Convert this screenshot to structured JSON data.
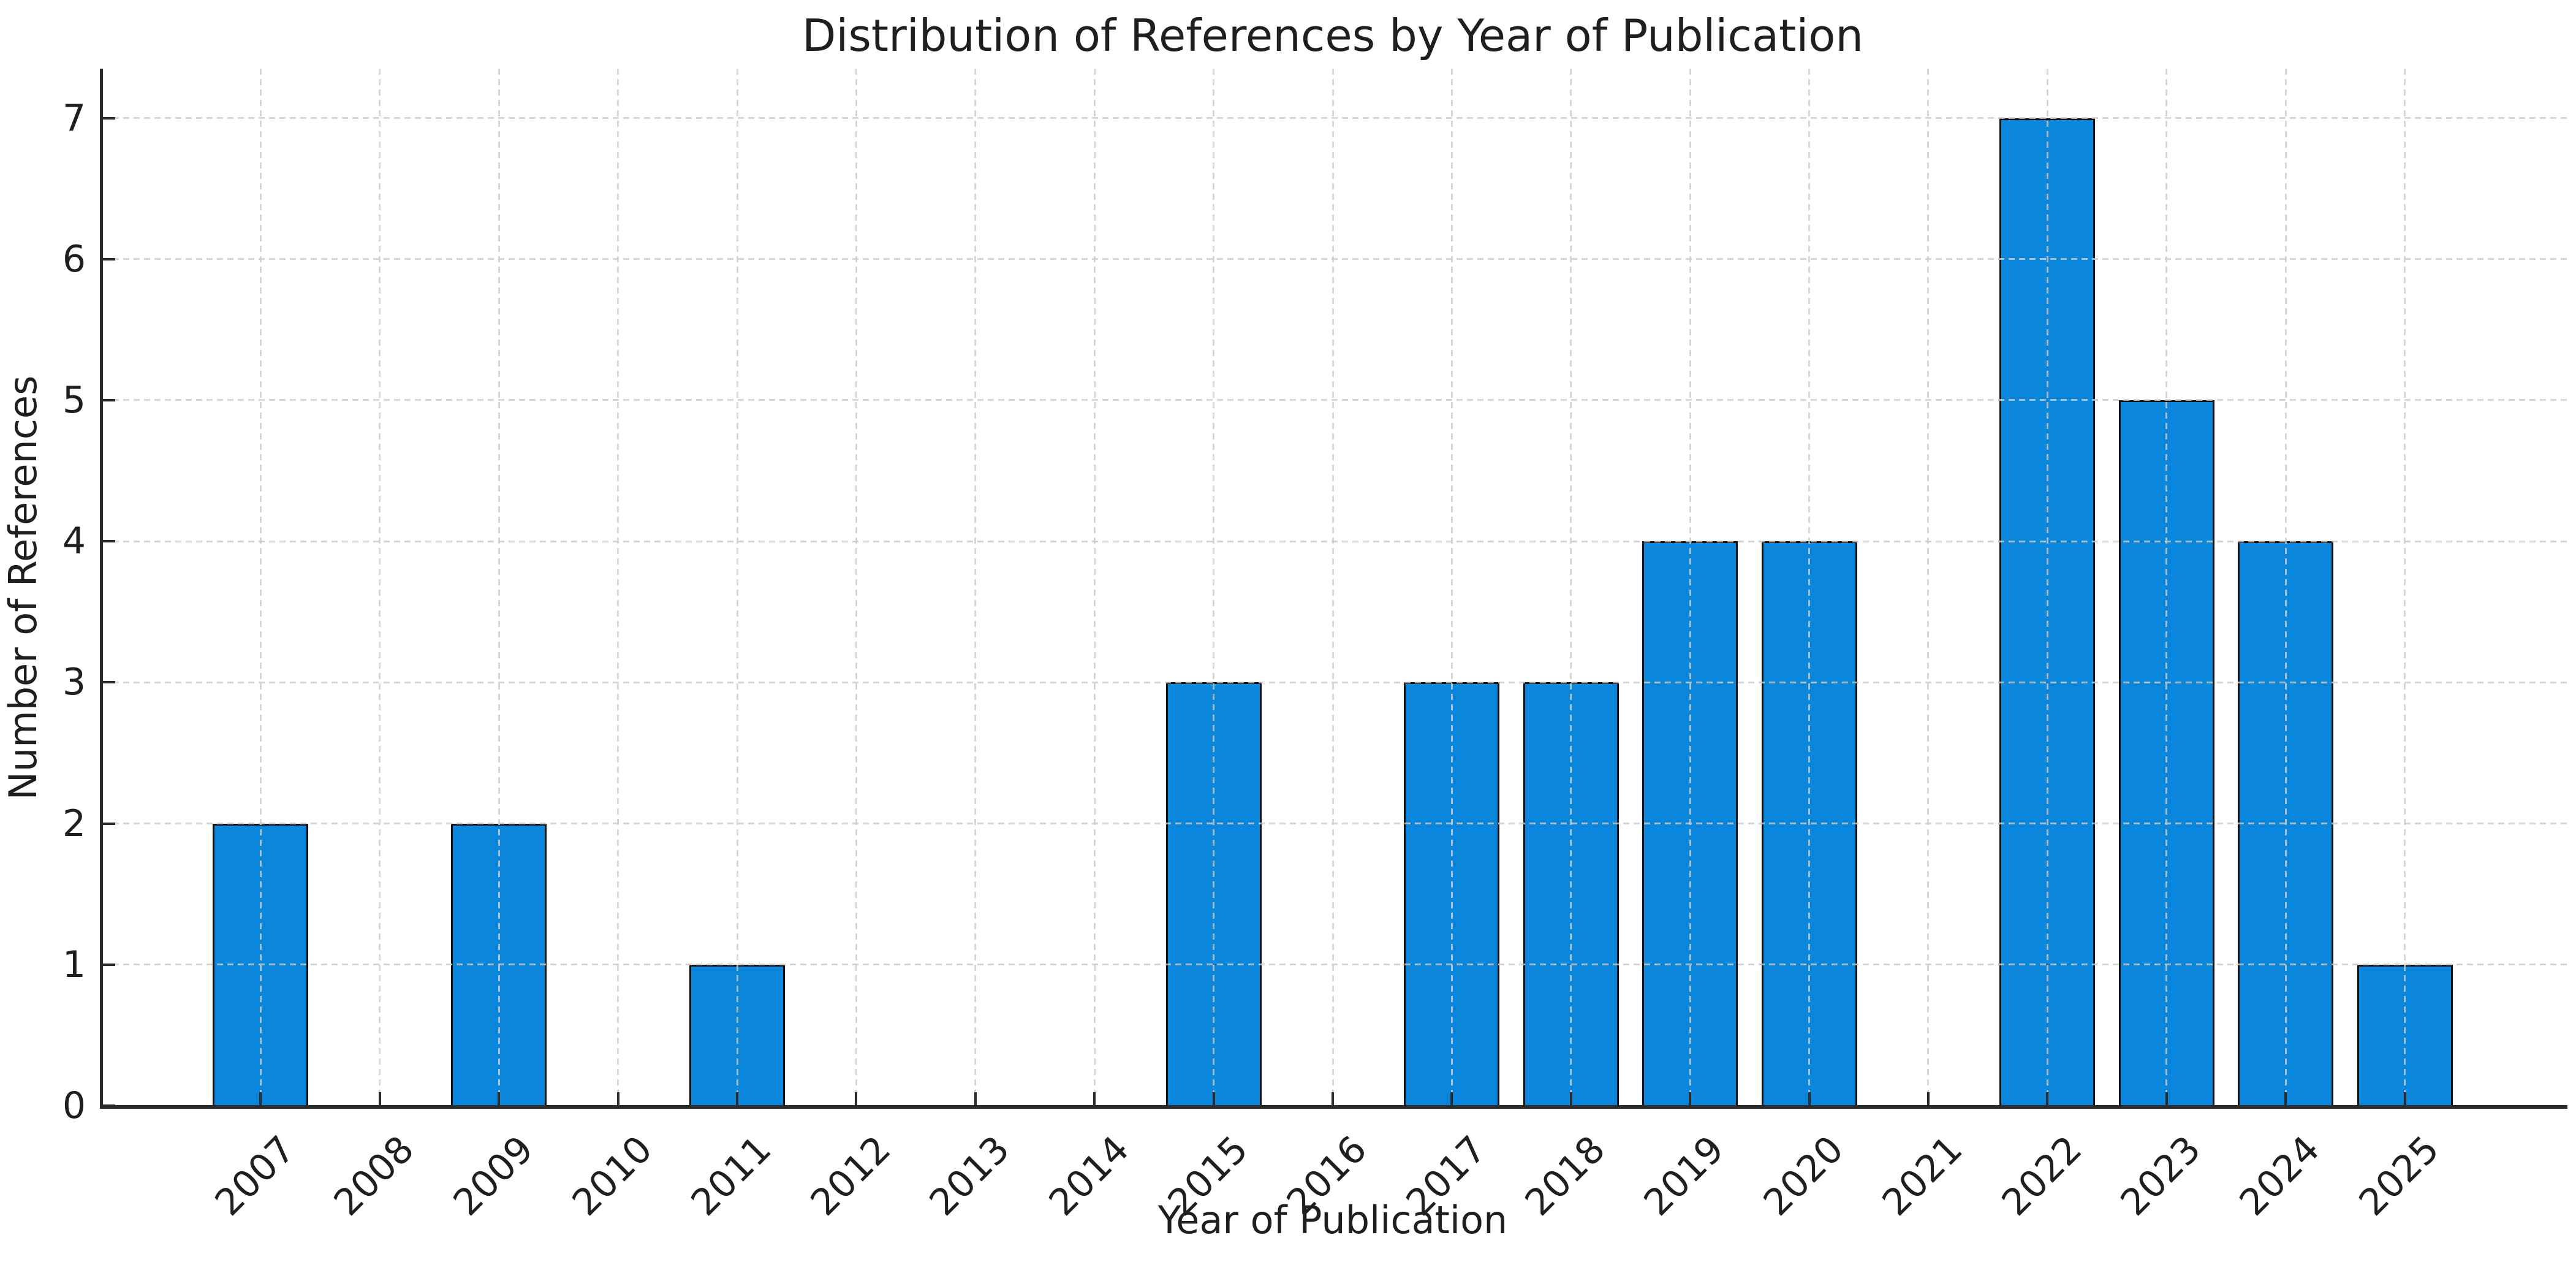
{
  "figure": {
    "background": "#ffffff"
  },
  "chart_data": {
    "type": "bar",
    "title": "Distribution of References by Year of Publication",
    "xlabel": "Year of Publication",
    "ylabel": "Number of References",
    "categories": [
      "2007",
      "2008",
      "2009",
      "2010",
      "2011",
      "2012",
      "2013",
      "2014",
      "2015",
      "2016",
      "2017",
      "2018",
      "2019",
      "2020",
      "2021",
      "2022",
      "2023",
      "2024",
      "2025"
    ],
    "values": [
      2,
      0,
      2,
      0,
      1,
      0,
      0,
      0,
      3,
      0,
      3,
      3,
      4,
      4,
      0,
      7,
      5,
      4,
      1
    ],
    "yticks": [
      0,
      1,
      2,
      3,
      4,
      5,
      6,
      7
    ],
    "ylim": [
      0,
      7.35
    ],
    "xtick_rotation_deg": 45,
    "grid": "both, dashed, drawn above bars",
    "legend": "none",
    "colors": {
      "bar_fill": "#0b86dd",
      "bar_edge": "#111111",
      "grid": "rgba(205,205,205,0.8)",
      "spine": "#2b2b2b",
      "tick": "#2b2b2b",
      "text": "#1f1f1f",
      "background": "#ffffff"
    }
  }
}
